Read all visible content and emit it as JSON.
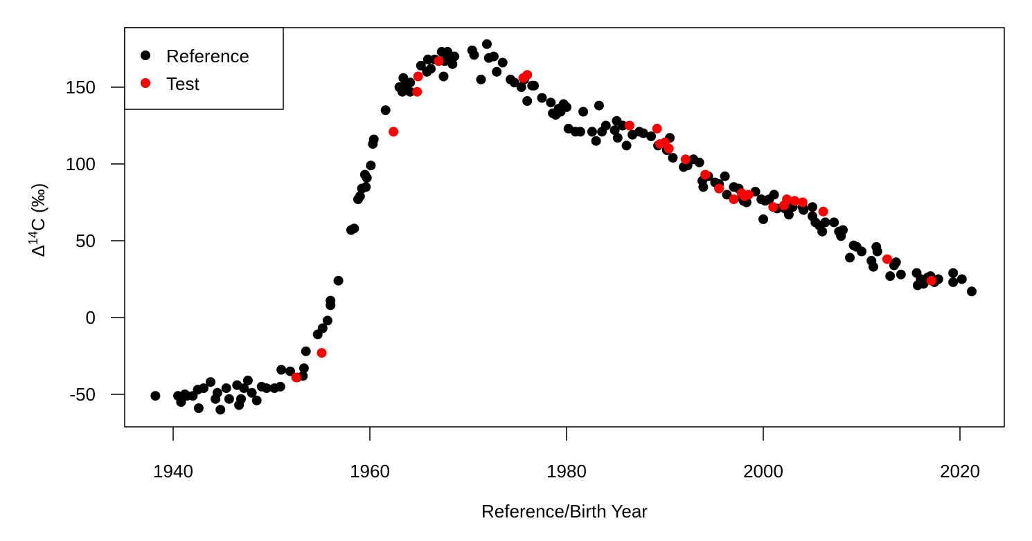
{
  "chart_data": {
    "type": "scatter",
    "title": "",
    "xlabel": "Reference/Birth Year",
    "ylabel_prefix": "Δ",
    "ylabel_sup": "14",
    "ylabel_suffix": "C (‰)",
    "xlim": [
      1935,
      2025
    ],
    "ylim": [
      -70,
      188
    ],
    "xticks": [
      1940,
      1960,
      1980,
      2000,
      2020
    ],
    "xtick_labels": [
      "1940",
      "1960",
      "1980",
      "2000",
      "2020"
    ],
    "yticks": [
      -50,
      0,
      50,
      100,
      150
    ],
    "ytick_labels": [
      "-50",
      "0",
      "50",
      "100",
      "150"
    ],
    "grid": false,
    "legend": {
      "position": "top-left",
      "entries": [
        {
          "label": "Reference",
          "color": "#000000"
        },
        {
          "label": "Test",
          "color": "#ff0000"
        }
      ]
    },
    "series": [
      {
        "name": "Reference",
        "color": "#000000",
        "points": [
          [
            1938.2,
            -51
          ],
          [
            1940.5,
            -51
          ],
          [
            1940.8,
            -55
          ],
          [
            1941.2,
            -50
          ],
          [
            1941.4,
            -51
          ],
          [
            1942.0,
            -51
          ],
          [
            1942.5,
            -47
          ],
          [
            1942.6,
            -59
          ],
          [
            1943.1,
            -46
          ],
          [
            1943.8,
            -42
          ],
          [
            1944.3,
            -53
          ],
          [
            1944.5,
            -49
          ],
          [
            1944.8,
            -60
          ],
          [
            1945.4,
            -46
          ],
          [
            1945.7,
            -53
          ],
          [
            1946.5,
            -44
          ],
          [
            1946.7,
            -57
          ],
          [
            1946.9,
            -53
          ],
          [
            1947.2,
            -46
          ],
          [
            1947.6,
            -41
          ],
          [
            1948.0,
            -49
          ],
          [
            1948.5,
            -54
          ],
          [
            1949.0,
            -45
          ],
          [
            1949.5,
            -46
          ],
          [
            1950.3,
            -46
          ],
          [
            1950.9,
            -45
          ],
          [
            1951.0,
            -34
          ],
          [
            1951.9,
            -35
          ],
          [
            1952.6,
            -39
          ],
          [
            1953.2,
            -38
          ],
          [
            1953.3,
            -33
          ],
          [
            1953.5,
            -22
          ],
          [
            1954.7,
            -11
          ],
          [
            1955.2,
            -7
          ],
          [
            1955.7,
            -2
          ],
          [
            1956.0,
            11
          ],
          [
            1956.0,
            8
          ],
          [
            1956.8,
            24
          ],
          [
            1958.1,
            57
          ],
          [
            1958.4,
            58
          ],
          [
            1958.8,
            77
          ],
          [
            1959.0,
            79
          ],
          [
            1959.2,
            84
          ],
          [
            1959.5,
            93
          ],
          [
            1959.6,
            85
          ],
          [
            1959.7,
            91
          ],
          [
            1960.1,
            99
          ],
          [
            1960.3,
            113
          ],
          [
            1960.4,
            116
          ],
          [
            1961.6,
            135
          ],
          [
            1963.0,
            150
          ],
          [
            1963.3,
            147
          ],
          [
            1963.4,
            156
          ],
          [
            1963.6,
            152
          ],
          [
            1964.1,
            153
          ],
          [
            1964.1,
            147
          ],
          [
            1965.2,
            164
          ],
          [
            1965.8,
            160
          ],
          [
            1965.9,
            168
          ],
          [
            1966.2,
            162
          ],
          [
            1966.6,
            168
          ],
          [
            1967.3,
            173
          ],
          [
            1967.5,
            157
          ],
          [
            1967.6,
            167
          ],
          [
            1967.9,
            173
          ],
          [
            1968.0,
            170
          ],
          [
            1968.4,
            165
          ],
          [
            1968.6,
            170
          ],
          [
            1970.4,
            174
          ],
          [
            1970.6,
            171
          ],
          [
            1971.3,
            155
          ],
          [
            1971.9,
            178
          ],
          [
            1972.1,
            169
          ],
          [
            1972.6,
            170
          ],
          [
            1972.9,
            160
          ],
          [
            1973.5,
            166
          ],
          [
            1974.3,
            155
          ],
          [
            1974.7,
            153
          ],
          [
            1975.4,
            150
          ],
          [
            1975.7,
            155
          ],
          [
            1976.0,
            141
          ],
          [
            1976.5,
            151
          ],
          [
            1976.7,
            151
          ],
          [
            1977.5,
            143
          ],
          [
            1978.4,
            140
          ],
          [
            1978.6,
            133
          ],
          [
            1978.9,
            132
          ],
          [
            1979.2,
            136
          ],
          [
            1979.4,
            134
          ],
          [
            1979.7,
            139
          ],
          [
            1980.0,
            137
          ],
          [
            1980.2,
            123
          ],
          [
            1980.9,
            121
          ],
          [
            1981.4,
            121
          ],
          [
            1981.7,
            134
          ],
          [
            1982.6,
            121
          ],
          [
            1983.0,
            115
          ],
          [
            1983.3,
            138
          ],
          [
            1983.6,
            121
          ],
          [
            1984.0,
            125
          ],
          [
            1984.9,
            122
          ],
          [
            1985.1,
            128
          ],
          [
            1985.2,
            117
          ],
          [
            1985.7,
            125
          ],
          [
            1986.1,
            112
          ],
          [
            1986.7,
            119
          ],
          [
            1987.4,
            121
          ],
          [
            1987.8,
            120
          ],
          [
            1988.6,
            118
          ],
          [
            1989.3,
            112
          ],
          [
            1990.2,
            109
          ],
          [
            1990.5,
            117
          ],
          [
            1990.8,
            104
          ],
          [
            1991.9,
            98
          ],
          [
            1992.3,
            99
          ],
          [
            1992.9,
            103
          ],
          [
            1993.5,
            101
          ],
          [
            1993.8,
            89
          ],
          [
            1993.9,
            85
          ],
          [
            1994.4,
            92
          ],
          [
            1995.1,
            88
          ],
          [
            1995.5,
            87
          ],
          [
            1996.1,
            92
          ],
          [
            1996.3,
            80
          ],
          [
            1997.0,
            85
          ],
          [
            1997.5,
            84
          ],
          [
            1997.8,
            78
          ],
          [
            1998.0,
            76
          ],
          [
            1998.3,
            75
          ],
          [
            1999.2,
            82
          ],
          [
            1999.8,
            77
          ],
          [
            2000.0,
            64
          ],
          [
            2000.2,
            76
          ],
          [
            2000.6,
            77
          ],
          [
            2001.1,
            80
          ],
          [
            2001.4,
            71
          ],
          [
            2002.2,
            71
          ],
          [
            2002.6,
            67
          ],
          [
            2003.0,
            72
          ],
          [
            2004.0,
            72
          ],
          [
            2004.1,
            70
          ],
          [
            2005.0,
            72
          ],
          [
            2005.0,
            66
          ],
          [
            2005.3,
            62
          ],
          [
            2005.7,
            60
          ],
          [
            2006.0,
            56
          ],
          [
            2006.3,
            62
          ],
          [
            2007.2,
            62
          ],
          [
            2007.7,
            56
          ],
          [
            2007.9,
            53
          ],
          [
            2008.1,
            57
          ],
          [
            2008.8,
            39
          ],
          [
            2009.2,
            47
          ],
          [
            2009.5,
            46
          ],
          [
            2010.0,
            43
          ],
          [
            2011.0,
            37
          ],
          [
            2011.2,
            33
          ],
          [
            2011.5,
            46
          ],
          [
            2011.6,
            43
          ],
          [
            2012.9,
            27
          ],
          [
            2013.3,
            34
          ],
          [
            2013.5,
            36
          ],
          [
            2014.0,
            28
          ],
          [
            2015.6,
            29
          ],
          [
            2015.7,
            21
          ],
          [
            2016.0,
            25
          ],
          [
            2016.3,
            22
          ],
          [
            2016.7,
            26
          ],
          [
            2017.0,
            27
          ],
          [
            2017.4,
            23
          ],
          [
            2017.8,
            25
          ],
          [
            2019.3,
            29
          ],
          [
            2019.3,
            23
          ],
          [
            2020.2,
            25
          ],
          [
            2021.2,
            17
          ]
        ]
      },
      {
        "name": "Test",
        "color": "#ff0000",
        "points": [
          [
            1952.5,
            -39
          ],
          [
            1955.1,
            -23
          ],
          [
            1962.4,
            121
          ],
          [
            1964.8,
            147
          ],
          [
            1964.9,
            157
          ],
          [
            1967.0,
            167
          ],
          [
            1975.6,
            156
          ],
          [
            1976.0,
            158
          ],
          [
            1986.4,
            125
          ],
          [
            1989.2,
            123
          ],
          [
            1989.5,
            113
          ],
          [
            1990.0,
            114
          ],
          [
            1990.4,
            110
          ],
          [
            1992.1,
            103
          ],
          [
            1994.1,
            93
          ],
          [
            1995.5,
            84
          ],
          [
            1997.0,
            77
          ],
          [
            1997.8,
            81
          ],
          [
            1998.1,
            79
          ],
          [
            1998.5,
            80
          ],
          [
            2001.0,
            72
          ],
          [
            2002.1,
            73
          ],
          [
            2002.4,
            77
          ],
          [
            2003.2,
            76
          ],
          [
            2004.0,
            75
          ],
          [
            2006.1,
            69
          ],
          [
            2012.6,
            38
          ],
          [
            2017.1,
            24
          ]
        ]
      }
    ]
  }
}
